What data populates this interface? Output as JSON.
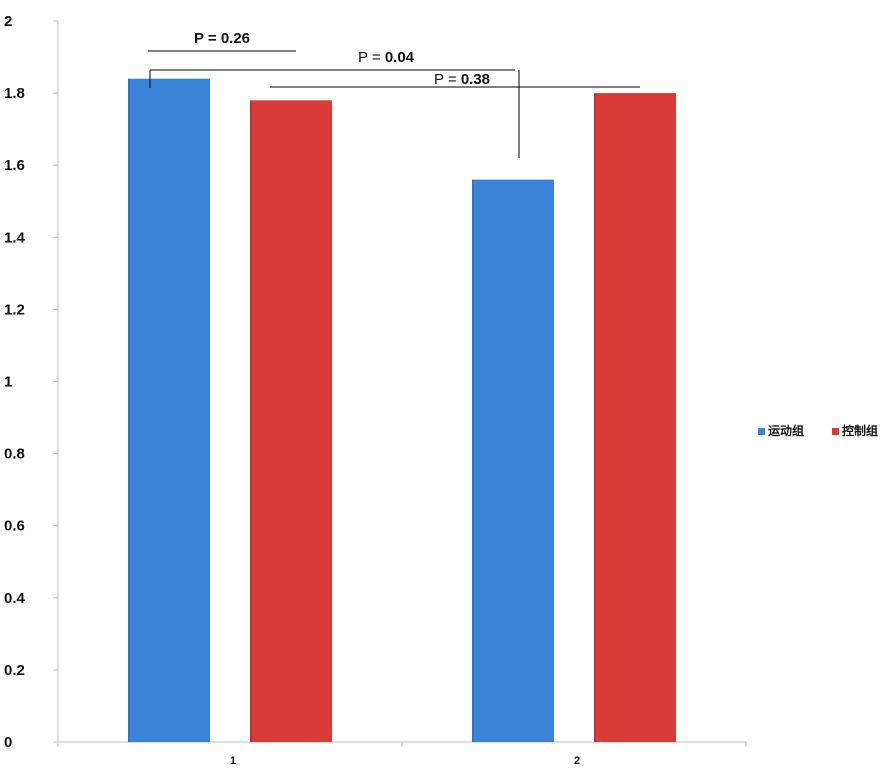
{
  "chart_data": {
    "type": "bar",
    "categories": [
      "1",
      "2"
    ],
    "series": [
      {
        "name": "运动组",
        "values": [
          1.84,
          1.56
        ],
        "color": "#3b83d8"
      },
      {
        "name": "控制组",
        "values": [
          1.78,
          1.8
        ],
        "color": "#d93b37"
      }
    ],
    "ylim": [
      0,
      2
    ],
    "yticks": [
      "0",
      "0.2",
      "0.4",
      "0.6",
      "0.8",
      "1",
      "1.2",
      "1.4",
      "1.6",
      "1.8",
      "2"
    ],
    "grid": false,
    "legend_position": "right",
    "annotations": [
      {
        "prefix": "P = ",
        "value": "0.26",
        "prefix_bold": true,
        "value_bold": true
      },
      {
        "prefix": "P = ",
        "value": "0.04",
        "prefix_bold": false,
        "value_bold": true
      },
      {
        "prefix": "P = ",
        "value": "0.38",
        "prefix_bold": false,
        "value_bold": true
      }
    ]
  }
}
